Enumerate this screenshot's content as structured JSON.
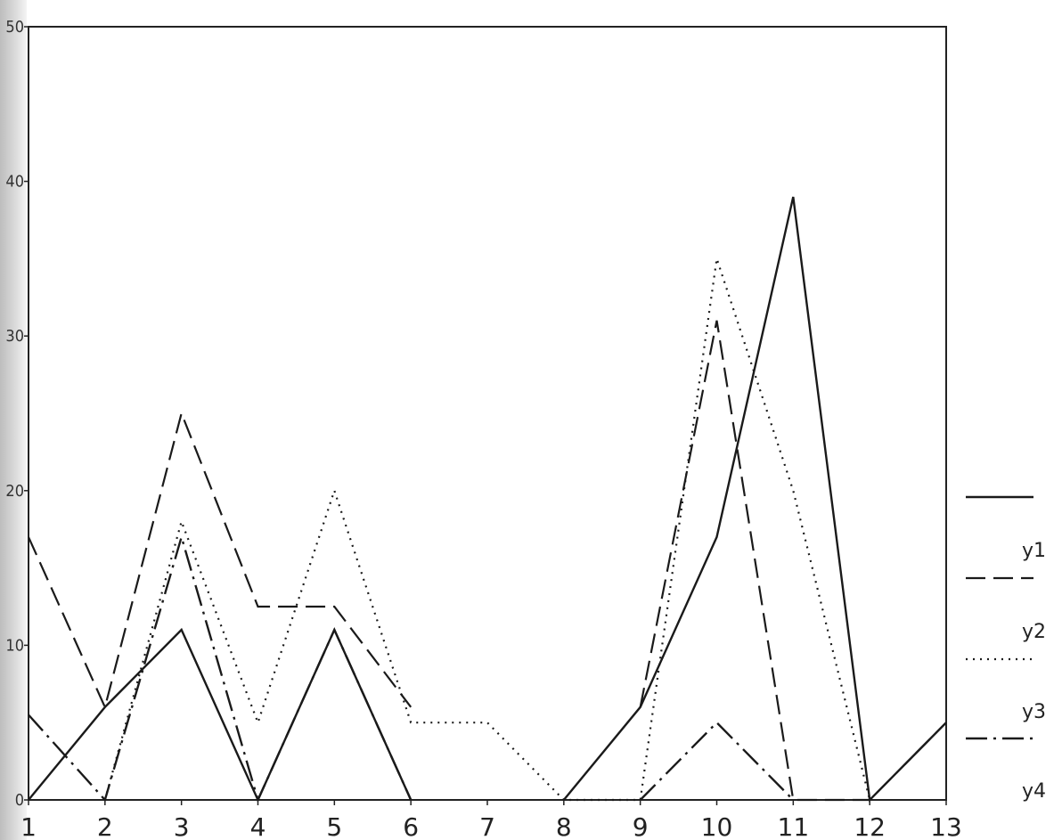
{
  "chart_data": {
    "type": "line",
    "title": "",
    "xlabel": "",
    "ylabel": "",
    "x": [
      1,
      2,
      3,
      4,
      5,
      6,
      7,
      8,
      9,
      10,
      11,
      12,
      13
    ],
    "xlim": [
      1,
      13
    ],
    "ylim": [
      0,
      50
    ],
    "x_ticks": [
      "1",
      "2",
      "3",
      "4",
      "5",
      "6",
      "7",
      "8",
      "9",
      "10",
      "11",
      "12",
      "13"
    ],
    "y_ticks": [
      "0",
      "10",
      "20",
      "30",
      "40",
      "50"
    ],
    "grid": false,
    "legend_position": "right",
    "series": [
      {
        "name": "y1",
        "style": "solid",
        "values": [
          0,
          6,
          11,
          0,
          11,
          0,
          null,
          0,
          6,
          17,
          39,
          0,
          5
        ]
      },
      {
        "name": "y2",
        "style": "dashed",
        "values": [
          17,
          6,
          25,
          12.5,
          12.5,
          6,
          null,
          null,
          6,
          31,
          0,
          0,
          5
        ]
      },
      {
        "name": "y3",
        "style": "dotted",
        "values": [
          null,
          0,
          18,
          5,
          20,
          5,
          5,
          0,
          0,
          35,
          20,
          0,
          null
        ]
      },
      {
        "name": "y4",
        "style": "dashdot",
        "values": [
          5.5,
          0,
          17,
          0,
          11,
          0,
          null,
          null,
          0,
          5,
          0,
          null,
          null
        ]
      }
    ]
  }
}
